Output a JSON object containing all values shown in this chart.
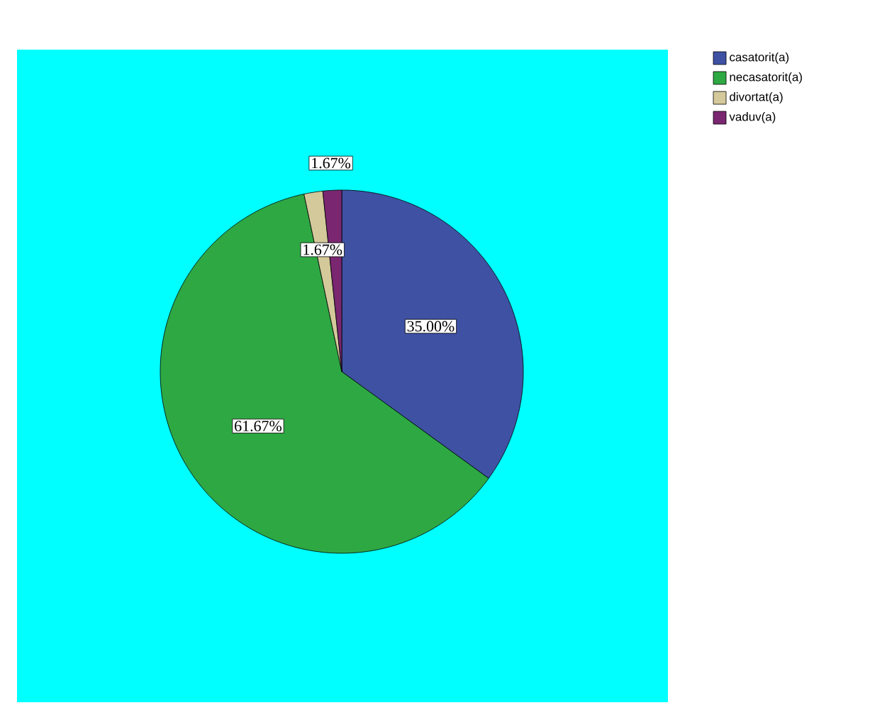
{
  "chart_data": {
    "type": "pie",
    "categories": [
      "casatorit(a)",
      "necasatorit(a)",
      "divortat(a)",
      "vaduv(a)"
    ],
    "values": [
      35.0,
      61.67,
      1.67,
      1.67
    ],
    "colors": [
      "#3f51a3",
      "#2ea843",
      "#d4c99a",
      "#7a2670"
    ],
    "value_labels": [
      "35.00%",
      "61.67%",
      "1.67%",
      "1.67%"
    ],
    "legend": "top right"
  }
}
